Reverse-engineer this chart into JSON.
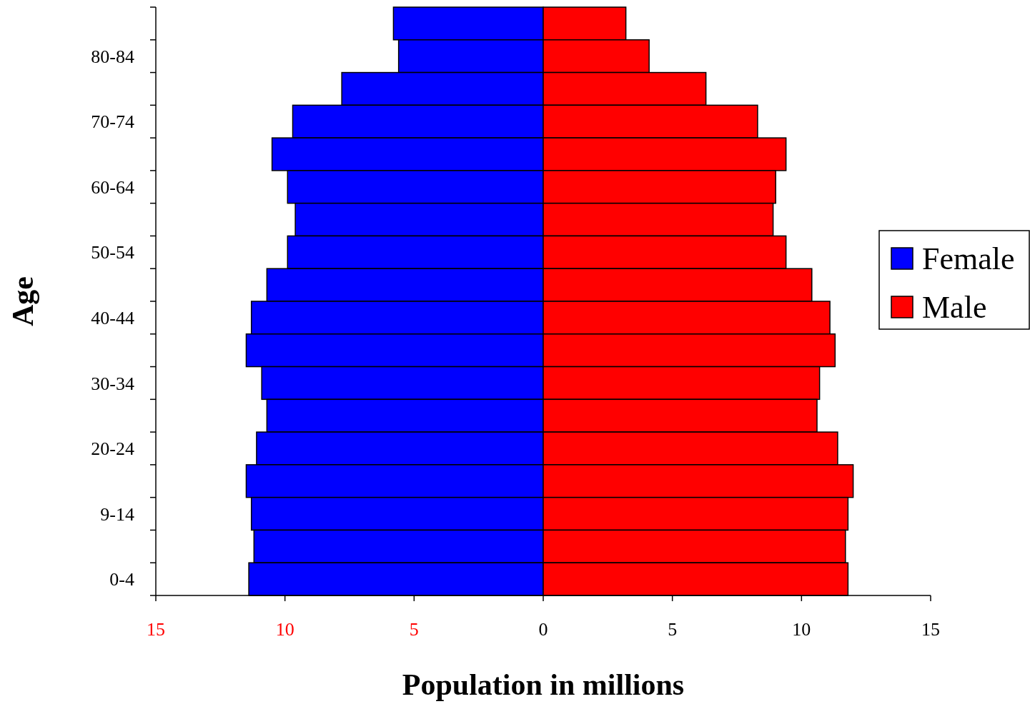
{
  "chart_data": {
    "type": "bar",
    "orientation": "horizontal",
    "stacked": true,
    "categories": [
      null,
      "80-84",
      null,
      "70-74",
      null,
      "60-64",
      null,
      "50-54",
      null,
      "40-44",
      null,
      "30-34",
      null,
      "20-24",
      null,
      "9-14",
      null,
      "0-4"
    ],
    "series": [
      {
        "name": "Female",
        "color": "#0000ff",
        "values": [
          -5.8,
          -5.6,
          -7.8,
          -9.7,
          -10.5,
          -9.9,
          -9.6,
          -9.9,
          -10.7,
          -11.3,
          -11.5,
          -10.9,
          -10.7,
          -11.1,
          -11.5,
          -11.3,
          -11.2,
          -11.4
        ]
      },
      {
        "name": "Male",
        "color": "#ff0000",
        "values": [
          3.2,
          4.1,
          6.3,
          8.3,
          9.4,
          9.0,
          8.9,
          9.4,
          10.4,
          11.1,
          11.3,
          10.7,
          10.6,
          11.4,
          12.0,
          11.8,
          11.7,
          11.8
        ]
      }
    ],
    "xlim": [
      -15,
      15
    ],
    "xticks": [
      {
        "value": -15,
        "label": "15"
      },
      {
        "value": -10,
        "label": "10"
      },
      {
        "value": -5,
        "label": "5"
      },
      0,
      5,
      10,
      15
    ],
    "xlabel": "Population in millions",
    "ylabel": "Age",
    "legend": "right",
    "grid": false
  }
}
